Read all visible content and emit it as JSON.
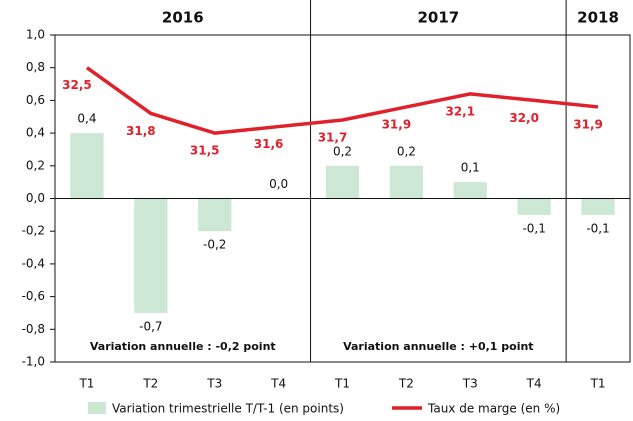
{
  "chart_data": {
    "type": "bar-line",
    "categories": [
      "T1",
      "T2",
      "T3",
      "T4",
      "T1",
      "T2",
      "T3",
      "T4",
      "T1"
    ],
    "groups": [
      {
        "name": "2016",
        "size": 4
      },
      {
        "name": "2017",
        "size": 4
      },
      {
        "name": "2018",
        "size": 1
      }
    ],
    "series": [
      {
        "name": "Variation trimestrielle T/T-1 (en points)",
        "type": "bar",
        "color": "#cce8d4",
        "values": [
          0.4,
          -0.7,
          -0.2,
          0.0,
          0.2,
          0.2,
          0.1,
          -0.1,
          -0.1
        ],
        "value_labels": [
          "0,4",
          "-0,7",
          "-0,2",
          "0,0",
          "0,2",
          "0,2",
          "0,1",
          "-0,1",
          "-0,1"
        ]
      },
      {
        "name": "Taux de marge (en %)",
        "type": "line",
        "color": "#e0202a",
        "axis": "y2",
        "values": [
          32.5,
          31.8,
          31.5,
          31.6,
          31.7,
          31.9,
          32.1,
          32.0,
          31.9
        ],
        "value_labels": [
          "32,5",
          "31,8",
          "31,5",
          "31,6",
          "31,7",
          "31,9",
          "32,1",
          "32,0",
          "31,9"
        ]
      }
    ],
    "annotations": [
      {
        "text": "Variation annuelle : -0,2 point",
        "group": 0
      },
      {
        "text": "Variation annuelle : +0,1 point",
        "group": 1
      }
    ],
    "ylim": [
      -1.0,
      1.0
    ],
    "yticks": [
      {
        "value": -1.0,
        "label": "-1,0"
      },
      {
        "value": -0.8,
        "label": "-0,8"
      },
      {
        "value": -0.6,
        "label": "-0,6"
      },
      {
        "value": -0.4,
        "label": "-0,4"
      },
      {
        "value": -0.2,
        "label": "-0,2"
      },
      {
        "value": 0.0,
        "label": "0,0"
      },
      {
        "value": 0.2,
        "label": "0,2"
      },
      {
        "value": 0.4,
        "label": "0,4"
      },
      {
        "value": 0.6,
        "label": "0,6"
      },
      {
        "value": 0.8,
        "label": "0,8"
      },
      {
        "value": 1.0,
        "label": "1,0"
      }
    ],
    "y2lim": [
      28,
      33
    ],
    "legend": "bottom"
  }
}
